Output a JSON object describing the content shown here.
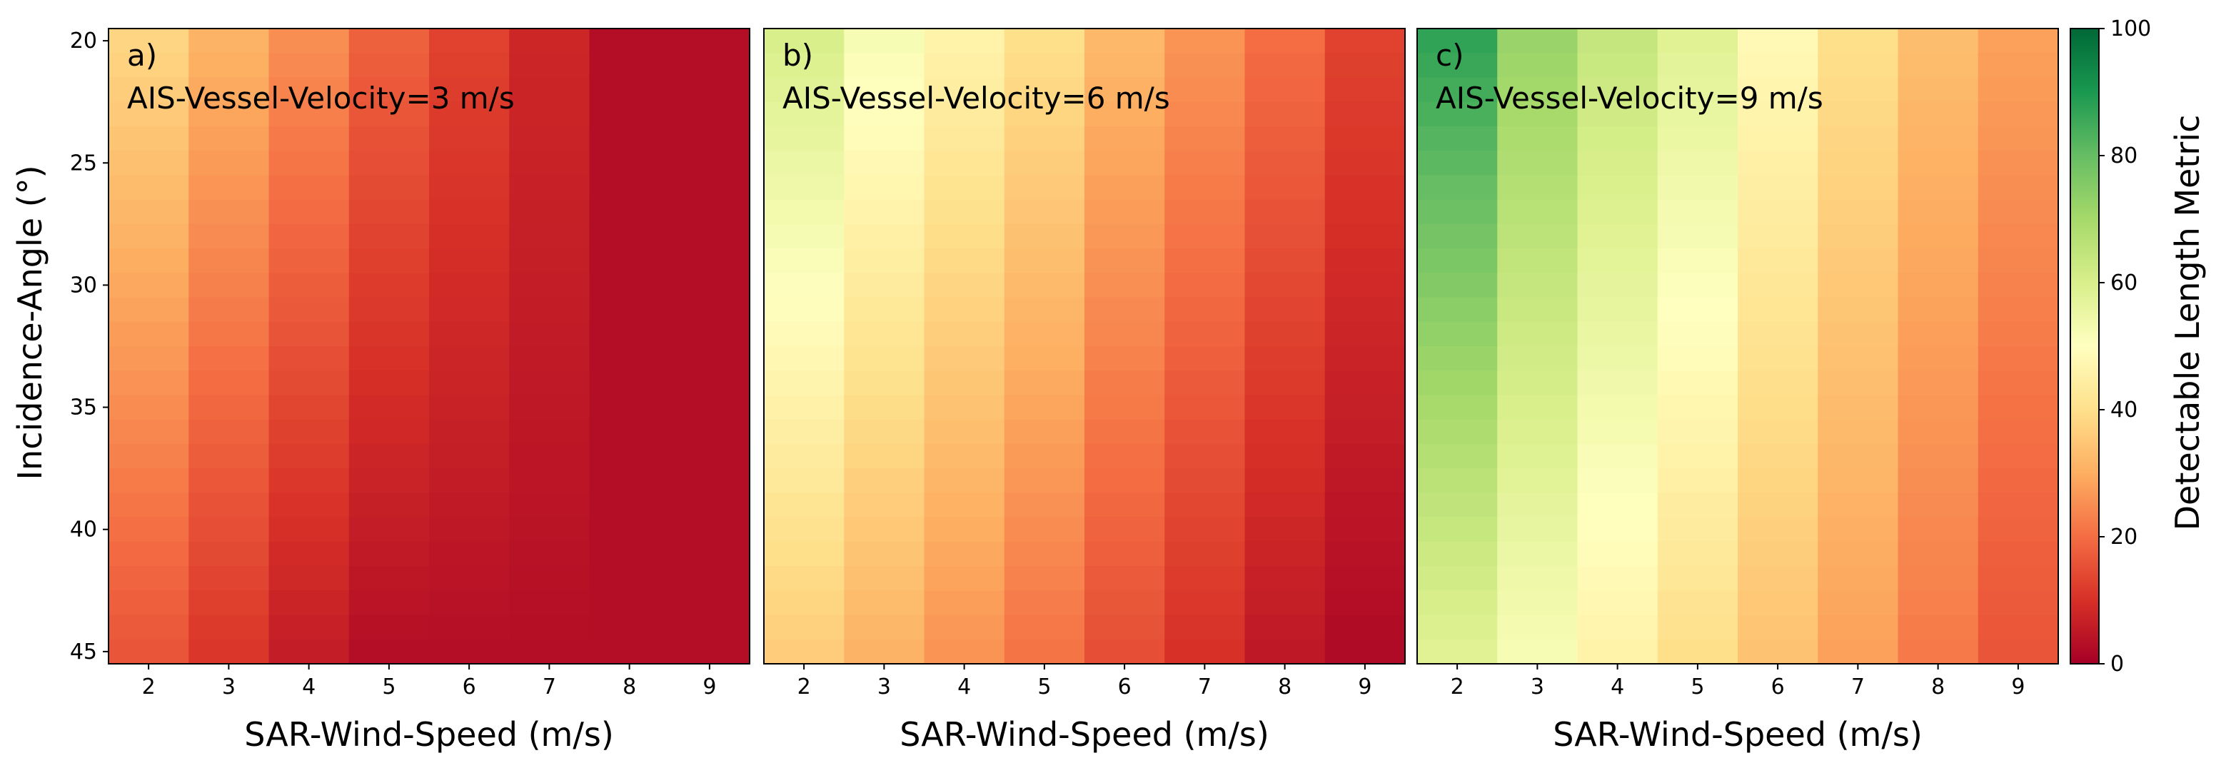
{
  "figure": {
    "ylabel": "Incidence-Angle (°)",
    "colorbar_label": "Detectable Length Metric"
  },
  "chart_data": [
    {
      "type": "heatmap",
      "panel_label": "a)",
      "title": "AIS-Vessel-Velocity=3 m/s",
      "xlabel": "SAR-Wind-Speed (m/s)",
      "ylabel": "Incidence-Angle (°)",
      "x": [
        2,
        3,
        4,
        5,
        6,
        7,
        8,
        9
      ],
      "xticks": [
        "2",
        "3",
        "4",
        "5",
        "6",
        "7",
        "8",
        "9"
      ],
      "yticks": [
        "20",
        "25",
        "30",
        "35",
        "40",
        "45"
      ],
      "ylim": [
        19.5,
        45.5
      ],
      "col_top": [
        38,
        31,
        25,
        18,
        13,
        8,
        3,
        3
      ],
      "col_bottom": [
        16,
        11,
        6,
        3,
        3,
        3,
        3,
        3
      ],
      "clim": [
        0,
        100
      ]
    },
    {
      "type": "heatmap",
      "panel_label": "b)",
      "title": "AIS-Vessel-Velocity=6 m/s",
      "xlabel": "SAR-Wind-Speed (m/s)",
      "ylabel": "",
      "x": [
        2,
        3,
        4,
        5,
        6,
        7,
        8,
        9
      ],
      "xticks": [
        "2",
        "3",
        "4",
        "5",
        "6",
        "7",
        "8",
        "9"
      ],
      "yticks": [],
      "ylim": [
        19.5,
        45.5
      ],
      "col_top": [
        60,
        52,
        46,
        40,
        32,
        26,
        20,
        13
      ],
      "col_bottom": [
        36,
        31,
        26,
        21,
        15,
        10,
        5,
        2
      ],
      "clim": [
        0,
        100
      ]
    },
    {
      "type": "heatmap",
      "panel_label": "c)",
      "title": "AIS-Vessel-Velocity=9 m/s",
      "xlabel": "SAR-Wind-Speed (m/s)",
      "ylabel": "",
      "x": [
        2,
        3,
        4,
        5,
        6,
        7,
        8,
        9
      ],
      "xticks": [
        "2",
        "3",
        "4",
        "5",
        "6",
        "7",
        "8",
        "9"
      ],
      "yticks": [],
      "ylim": [
        19.5,
        45.5
      ],
      "col_top": [
        87,
        72,
        64,
        58,
        48,
        40,
        33,
        28
      ],
      "col_bottom": [
        58,
        52,
        46,
        40,
        34,
        28,
        22,
        16
      ],
      "clim": [
        0,
        100
      ]
    }
  ],
  "colorbar": {
    "ticks": [
      "0",
      "20",
      "40",
      "60",
      "80",
      "100"
    ],
    "tick_values": [
      0,
      20,
      40,
      60,
      80,
      100
    ],
    "colormap": "RdYlGn",
    "stops": [
      "#a50026",
      "#d73027",
      "#f46d43",
      "#fdae61",
      "#fee08b",
      "#ffffbf",
      "#d9ef8b",
      "#a6d96a",
      "#66bd63",
      "#1a9850",
      "#006837"
    ]
  }
}
